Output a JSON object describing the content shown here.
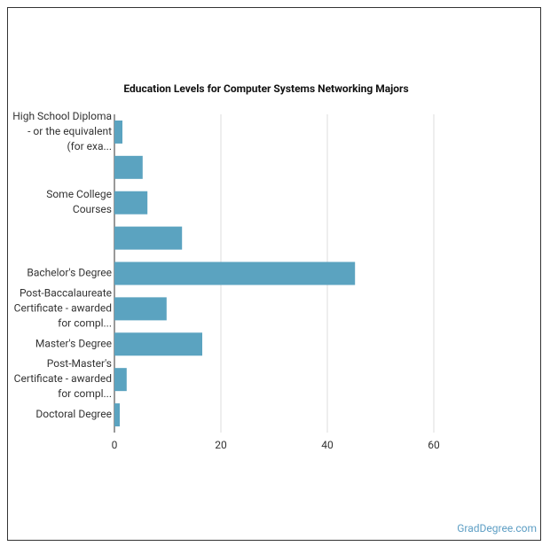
{
  "chart_data": {
    "type": "bar",
    "orientation": "horizontal",
    "title": "Education Levels for Computer Systems Networking Majors",
    "categories": [
      "High School Diploma - or the equivalent (for exa...",
      null,
      "Some College Courses",
      null,
      "Bachelor's Degree",
      "Post-Baccalaureate Certificate - awarded for compl...",
      "Master's Degree",
      "Post-Master's Certificate - awarded for compl...",
      "Doctoral Degree"
    ],
    "values": [
      1.5,
      5.3,
      6.2,
      12.7,
      45.2,
      9.8,
      16.5,
      2.3,
      1.0
    ],
    "color": "#5ba3c0",
    "xlim": [
      0,
      60
    ],
    "xticks": [
      0,
      20,
      40,
      60
    ],
    "grid": true,
    "source": "GradDegree.com"
  }
}
